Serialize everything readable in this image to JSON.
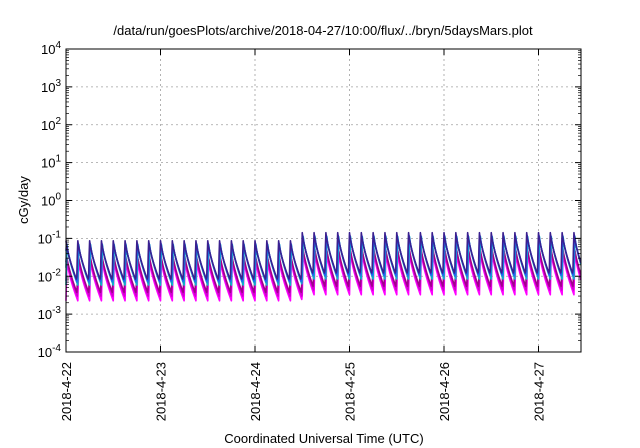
{
  "chart_data": {
    "type": "line",
    "title": "/data/run/goesPlots/archive/2018-04-27/10:00/flux/../bryn/5daysMars.plot",
    "xlabel": "Coordinated Universal Time (UTC)",
    "ylabel": "cGy/day",
    "y_scale": "log",
    "ylim": [
      0.0001,
      10000
    ],
    "xlim": [
      "2018-04-22 00:00",
      "2018-04-27 12:00"
    ],
    "grid": true,
    "y_ticks": [
      {
        "base": "10",
        "exp": "-4",
        "value": 0.0001
      },
      {
        "base": "10",
        "exp": "-3",
        "value": 0.001
      },
      {
        "base": "10",
        "exp": "-2",
        "value": 0.01
      },
      {
        "base": "10",
        "exp": "-1",
        "value": 0.1
      },
      {
        "base": "10",
        "exp": "0",
        "value": 1
      },
      {
        "base": "10",
        "exp": "1",
        "value": 10
      },
      {
        "base": "10",
        "exp": "2",
        "value": 100
      },
      {
        "base": "10",
        "exp": "3",
        "value": 1000
      },
      {
        "base": "10",
        "exp": "4",
        "value": 10000
      }
    ],
    "x_ticks": [
      "2018-4-22",
      "2018-4-23",
      "2018-4-24",
      "2018-4-25",
      "2018-4-26",
      "2018-4-27"
    ],
    "pattern": {
      "cycles_per_day": 8,
      "bands": [
        {
          "day_start": 0,
          "day_end": 2.5,
          "peak": 0.055,
          "trough": 0.0045
        },
        {
          "day_start": 2.5,
          "day_end": 5.5,
          "peak": 0.09,
          "trough": 0.0065
        }
      ]
    },
    "series": [
      {
        "color": "#ff00ff",
        "scale": 0.5,
        "phase": 0.0
      },
      {
        "color": "#d000d0",
        "scale": 0.65,
        "phase": 0.03
      },
      {
        "color": "#a0008c",
        "scale": 0.8,
        "phase": 0.06
      },
      {
        "color": "#00c8c8",
        "scale": 1.3,
        "phase": 0.0
      },
      {
        "color": "#1a8fd0",
        "scale": 1.45,
        "phase": 0.03
      },
      {
        "color": "#2255ff",
        "scale": 1.6,
        "phase": 0.06
      },
      {
        "color": "#3a2090",
        "scale": 1.75,
        "phase": 0.09
      }
    ]
  }
}
